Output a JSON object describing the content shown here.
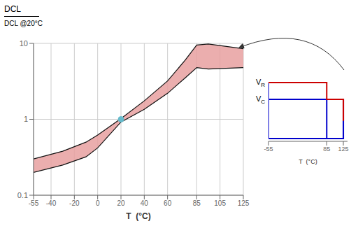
{
  "chart_data": [
    {
      "type": "area",
      "ylabel": {
        "top": "DCL",
        "bottom": "DCL @20°C"
      },
      "xlabel": "T  (°C)",
      "x": [
        -55,
        -30,
        -10,
        0,
        20,
        40,
        60,
        75,
        85,
        95,
        125
      ],
      "series": [
        {
          "values": [
            0.3,
            0.38,
            0.5,
            0.62,
            1.02,
            1.75,
            3.2,
            6.0,
            9.5,
            9.8,
            8.5
          ],
          "color": "#111111"
        },
        {
          "values": [
            0.2,
            0.25,
            0.32,
            0.42,
            0.92,
            1.35,
            2.2,
            3.5,
            4.8,
            4.6,
            4.8
          ],
          "color": "#111111"
        },
        {
          "type": "scatter",
          "x": [
            20
          ],
          "values": [
            1.0
          ],
          "color": "#66bbcc"
        }
      ],
      "color": "#e8a0a0",
      "xlim": [
        -55,
        125
      ],
      "ylim": [
        0.1,
        10
      ],
      "xticks": [
        -55,
        -40,
        -20,
        0,
        20,
        40,
        60,
        85,
        105,
        125
      ],
      "yticks": [
        0.1,
        1,
        10
      ],
      "log": "y",
      "grid": true
    },
    {
      "type": "line",
      "xlabel": "T  (°C)",
      "xlim": [
        -55,
        135
      ],
      "ylim": [
        -0.05,
        1.25
      ],
      "xticks": [
        -55,
        85,
        125
      ],
      "tick_labels": "x",
      "series": [
        {
          "x": [
            -55,
            -55,
            125,
            125,
            -55,
            null,
            85,
            85
          ],
          "values": [
            1.0,
            0,
            0,
            0.7,
            0.7,
            null,
            0,
            0.7
          ],
          "color": "#0000cc"
        },
        {
          "x": [
            -55,
            85,
            85,
            125,
            125
          ],
          "values": [
            1.0,
            1.0,
            0.7,
            0.7,
            0.315
          ],
          "color": "#cc0000"
        }
      ],
      "annotations": [
        {
          "text": "V",
          "subscript": "R",
          "y": 1.0
        },
        {
          "text": "V",
          "subscript": "C",
          "y": 0.7
        }
      ]
    }
  ]
}
